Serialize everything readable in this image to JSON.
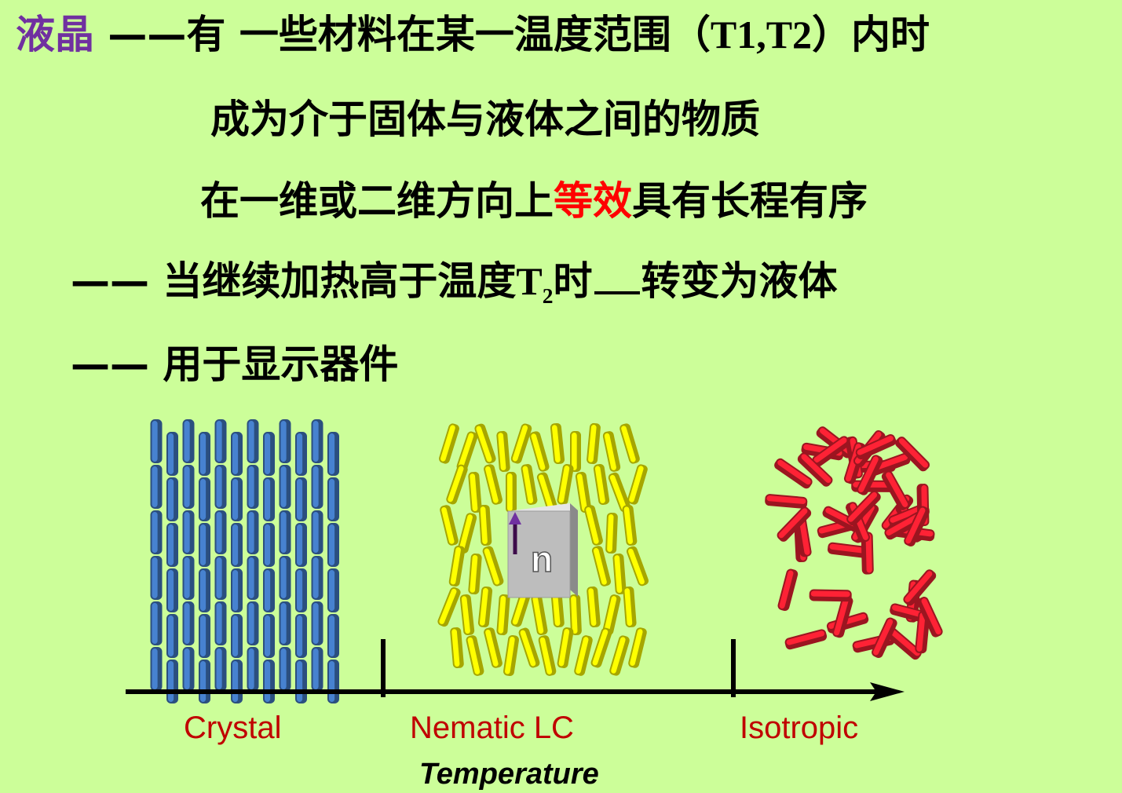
{
  "heading": {
    "term": "液晶",
    "dash": "——",
    "line1_text": "有 一些材料在某一温度范围",
    "range_open": "（",
    "range_values": "T1,T2",
    "range_close": "）",
    "line1_tail": "内时",
    "line2": "成为介于固体与液体之间的物质",
    "line3_pre": "在一维或二维方向上",
    "line3_emph": "等效",
    "line3_post": "具有长程有序"
  },
  "bullets": {
    "dash": "——",
    "b1_pre": "当继续加热高于温度",
    "b1_T": "T",
    "b1_sub": "2",
    "b1_mid": "时",
    "b1_post": "转变为液体",
    "b2": "用于显示器件"
  },
  "diagram": {
    "phases": [
      {
        "label": "Crystal",
        "color": "#3c6eb0"
      },
      {
        "label": "Nematic LC",
        "color": "#e6e600"
      },
      {
        "label": "Isotropic",
        "color": "#d71d2d"
      }
    ],
    "director_label": "n",
    "axis_label": "Temperature"
  }
}
